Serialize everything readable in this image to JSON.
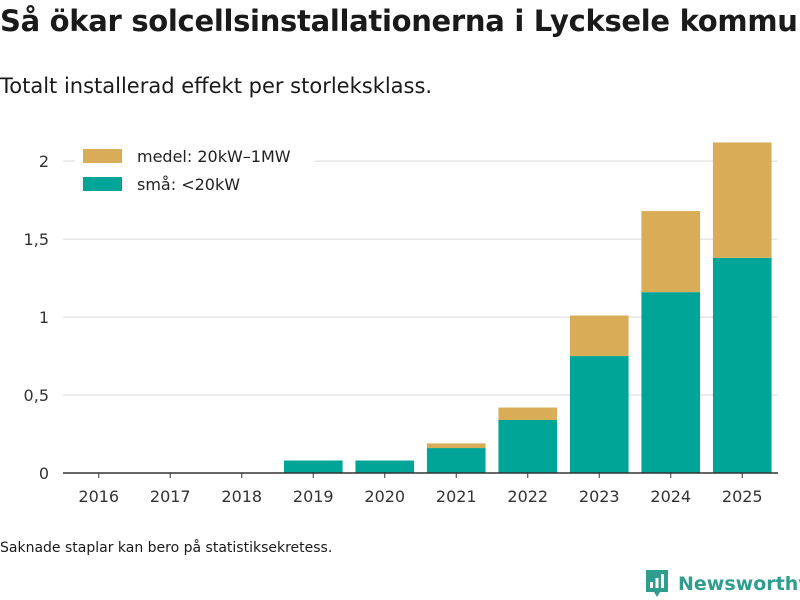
{
  "title": "Så ökar solcellsinstallationerna i Lycksele kommun",
  "subtitle": "Totalt installerad effekt per storleksklass.",
  "footnote": "Saknade staplar kan bero på statistiksekretess.",
  "brand": {
    "name": "Newsworthy",
    "icon": "newsworthy-logo-icon",
    "color": "#2f9e8f"
  },
  "chart_data": {
    "type": "bar",
    "stacked": true,
    "categories": [
      "2016",
      "2017",
      "2018",
      "2019",
      "2020",
      "2021",
      "2022",
      "2023",
      "2024",
      "2025"
    ],
    "series": [
      {
        "name": "små: <20kW",
        "color": "#00a598",
        "values": [
          0,
          0,
          0,
          0.08,
          0.08,
          0.16,
          0.34,
          0.75,
          1.16,
          1.38
        ]
      },
      {
        "name": "medel: 20kW–1MW",
        "color": "#d9ad58",
        "values": [
          0,
          0,
          0,
          0,
          0,
          0.03,
          0.08,
          0.26,
          0.52,
          0.74
        ]
      }
    ],
    "legend_order": [
      "medel: 20kW–1MW",
      "små: <20kW"
    ],
    "legend_position": "top-left",
    "y_ticks": [
      0,
      0.5,
      1,
      1.5,
      2
    ],
    "y_tick_labels": [
      "0",
      "0,5",
      "1",
      "1,5",
      "2"
    ],
    "ylim": [
      0,
      2.2
    ],
    "grid": true,
    "xlabel": "",
    "ylabel": ""
  }
}
